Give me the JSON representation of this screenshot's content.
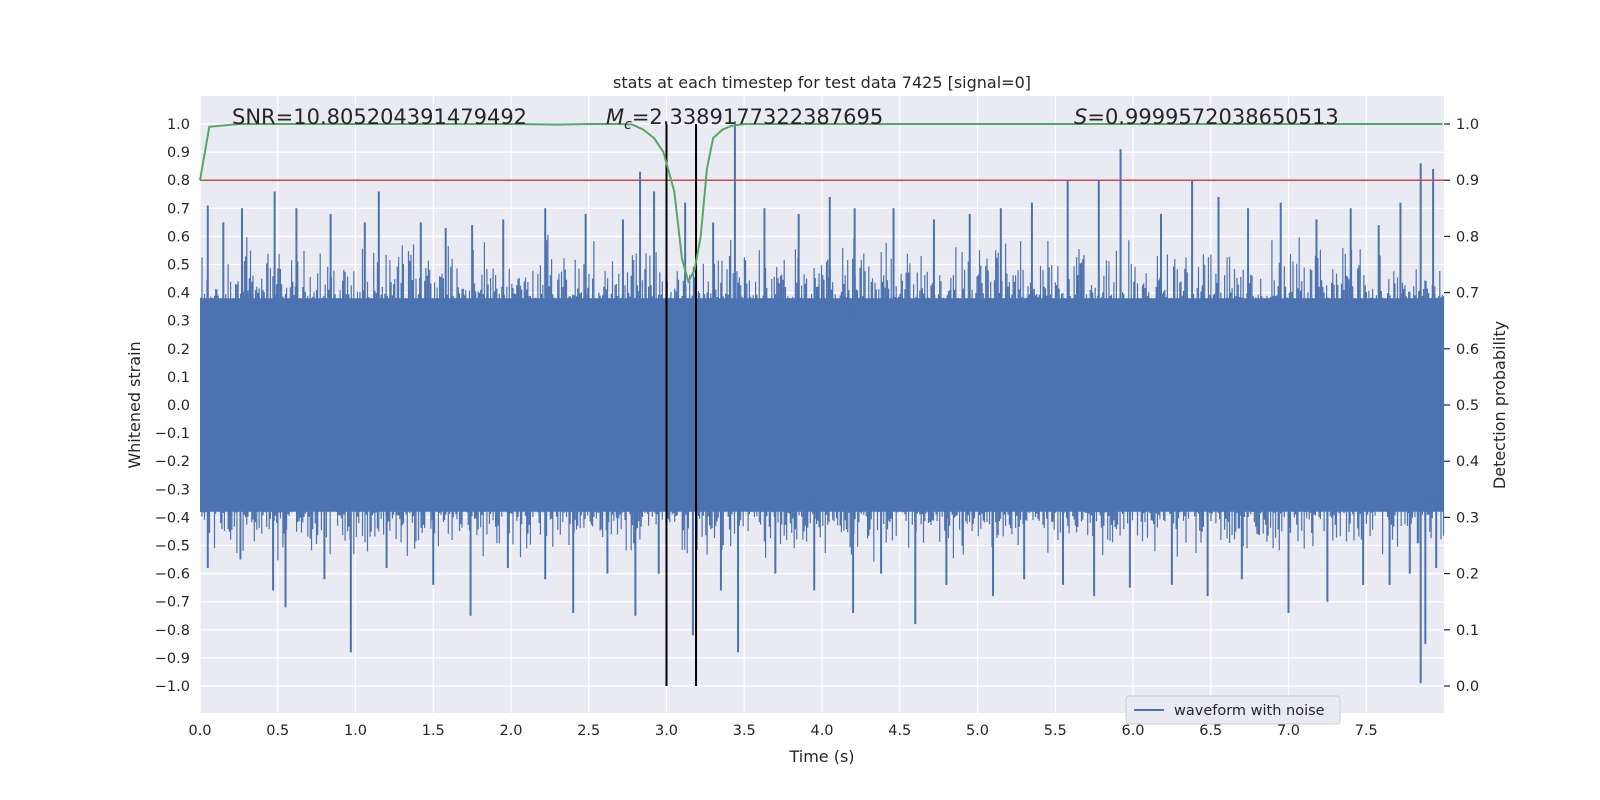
{
  "chart_data": {
    "type": "line",
    "title": "stats at each timestep for test data 7425 [signal=0]",
    "xlabel": "Time (s)",
    "ylabel": "Whitened strain",
    "y2label": "Detection probability",
    "xlim": [
      0.0,
      8.0
    ],
    "ylim": [
      -1.1,
      1.1
    ],
    "y2lim": [
      -0.05,
      1.05
    ],
    "xticks": [
      0.0,
      0.5,
      1.0,
      1.5,
      2.0,
      2.5,
      3.0,
      3.5,
      4.0,
      4.5,
      5.0,
      5.5,
      6.0,
      6.5,
      7.0,
      7.5
    ],
    "xtick_labels": [
      "0.0",
      "0.5",
      "1.0",
      "1.5",
      "2.0",
      "2.5",
      "3.0",
      "3.5",
      "4.0",
      "4.5",
      "5.0",
      "5.5",
      "6.0",
      "6.5",
      "7.0",
      "7.5"
    ],
    "yticks": [
      1.0,
      0.9,
      0.8,
      0.7,
      0.6,
      0.5,
      0.4,
      0.3,
      0.2,
      0.1,
      0.0,
      -0.1,
      -0.2,
      -0.3,
      -0.4,
      -0.5,
      -0.6,
      -0.7,
      -0.8,
      -0.9,
      -1.0
    ],
    "ytick_labels": [
      "1.0",
      "0.9",
      "0.8",
      "0.7",
      "0.6",
      "0.5",
      "0.4",
      "0.3",
      "0.2",
      "0.1",
      "0.0",
      "−0.1",
      "−0.2",
      "−0.3",
      "−0.4",
      "−0.5",
      "−0.6",
      "−0.7",
      "−0.8",
      "−0.9",
      "−1.0"
    ],
    "y2ticks": [
      1.0,
      0.9,
      0.8,
      0.7,
      0.6,
      0.5,
      0.4,
      0.3,
      0.2,
      0.1,
      0.0
    ],
    "y2tick_labels": [
      "1.0",
      "0.9",
      "0.8",
      "0.7",
      "0.6",
      "0.5",
      "0.4",
      "0.3",
      "0.2",
      "0.1",
      "0.0"
    ],
    "annotations": {
      "snr": "SNR=10.805204391479492",
      "mc_symbol": "M",
      "mc_sub": "c",
      "mc_value": "=2.3389177322387695",
      "s_symbol": "S",
      "s_value": "=0.9999572038650513"
    },
    "legend": {
      "label": "waveform with noise",
      "position": "lower-right"
    },
    "waveform": {
      "name": "waveform with noise",
      "color": "#4c72b0",
      "dense_band": [
        -0.38,
        0.38
      ],
      "positive_peaks": [
        {
          "t": 0.05,
          "v": 0.71
        },
        {
          "t": 0.15,
          "v": 0.65
        },
        {
          "t": 0.27,
          "v": 0.7
        },
        {
          "t": 0.48,
          "v": 0.76
        },
        {
          "t": 0.62,
          "v": 0.7
        },
        {
          "t": 0.84,
          "v": 0.68
        },
        {
          "t": 1.06,
          "v": 0.65
        },
        {
          "t": 1.15,
          "v": 0.76
        },
        {
          "t": 1.42,
          "v": 0.65
        },
        {
          "t": 1.58,
          "v": 0.63
        },
        {
          "t": 1.75,
          "v": 0.64
        },
        {
          "t": 1.95,
          "v": 0.66
        },
        {
          "t": 2.22,
          "v": 0.7
        },
        {
          "t": 2.48,
          "v": 0.68
        },
        {
          "t": 2.72,
          "v": 0.66
        },
        {
          "t": 2.83,
          "v": 0.83
        },
        {
          "t": 2.92,
          "v": 0.76
        },
        {
          "t": 3.12,
          "v": 0.72
        },
        {
          "t": 3.3,
          "v": 0.65
        },
        {
          "t": 3.44,
          "v": 1.01
        },
        {
          "t": 3.63,
          "v": 0.7
        },
        {
          "t": 3.85,
          "v": 0.68
        },
        {
          "t": 4.05,
          "v": 0.74
        },
        {
          "t": 4.21,
          "v": 0.7
        },
        {
          "t": 4.46,
          "v": 0.7
        },
        {
          "t": 4.72,
          "v": 0.66
        },
        {
          "t": 4.95,
          "v": 0.68
        },
        {
          "t": 5.15,
          "v": 0.7
        },
        {
          "t": 5.35,
          "v": 0.72
        },
        {
          "t": 5.58,
          "v": 0.8
        },
        {
          "t": 5.78,
          "v": 0.8
        },
        {
          "t": 5.92,
          "v": 0.91
        },
        {
          "t": 6.18,
          "v": 0.68
        },
        {
          "t": 6.38,
          "v": 0.8
        },
        {
          "t": 6.55,
          "v": 0.74
        },
        {
          "t": 6.74,
          "v": 0.7
        },
        {
          "t": 6.95,
          "v": 0.72
        },
        {
          "t": 7.18,
          "v": 0.66
        },
        {
          "t": 7.4,
          "v": 0.7
        },
        {
          "t": 7.58,
          "v": 0.64
        },
        {
          "t": 7.72,
          "v": 0.72
        },
        {
          "t": 7.85,
          "v": 0.86
        },
        {
          "t": 7.93,
          "v": 0.84
        }
      ],
      "negative_peaks": [
        {
          "t": 0.05,
          "v": -0.58
        },
        {
          "t": 0.26,
          "v": -0.55
        },
        {
          "t": 0.47,
          "v": -0.66
        },
        {
          "t": 0.55,
          "v": -0.72
        },
        {
          "t": 0.8,
          "v": -0.62
        },
        {
          "t": 0.97,
          "v": -0.88
        },
        {
          "t": 1.2,
          "v": -0.58
        },
        {
          "t": 1.5,
          "v": -0.64
        },
        {
          "t": 1.74,
          "v": -0.75
        },
        {
          "t": 1.98,
          "v": -0.58
        },
        {
          "t": 2.22,
          "v": -0.62
        },
        {
          "t": 2.4,
          "v": -0.74
        },
        {
          "t": 2.62,
          "v": -0.6
        },
        {
          "t": 2.8,
          "v": -0.75
        },
        {
          "t": 2.95,
          "v": -0.6
        },
        {
          "t": 3.17,
          "v": -0.82
        },
        {
          "t": 3.35,
          "v": -0.66
        },
        {
          "t": 3.46,
          "v": -0.88
        },
        {
          "t": 3.7,
          "v": -0.6
        },
        {
          "t": 3.95,
          "v": -0.66
        },
        {
          "t": 4.2,
          "v": -0.74
        },
        {
          "t": 4.38,
          "v": -0.6
        },
        {
          "t": 4.6,
          "v": -0.78
        },
        {
          "t": 4.8,
          "v": -0.64
        },
        {
          "t": 5.1,
          "v": -0.68
        },
        {
          "t": 5.3,
          "v": -0.62
        },
        {
          "t": 5.55,
          "v": -0.64
        },
        {
          "t": 5.75,
          "v": -0.68
        },
        {
          "t": 5.98,
          "v": -0.65
        },
        {
          "t": 6.25,
          "v": -0.64
        },
        {
          "t": 6.48,
          "v": -0.68
        },
        {
          "t": 6.7,
          "v": -0.62
        },
        {
          "t": 7.0,
          "v": -0.74
        },
        {
          "t": 7.25,
          "v": -0.7
        },
        {
          "t": 7.48,
          "v": -0.64
        },
        {
          "t": 7.65,
          "v": -0.64
        },
        {
          "t": 7.78,
          "v": -0.6
        },
        {
          "t": 7.85,
          "v": -0.99
        },
        {
          "t": 7.88,
          "v": -0.85
        },
        {
          "t": 7.95,
          "v": -0.58
        }
      ]
    },
    "probability": {
      "name": "detection probability",
      "color": "#55a868",
      "x": [
        0.0,
        0.06,
        0.25,
        1.0,
        1.5,
        2.0,
        2.3,
        2.5,
        2.7,
        2.78,
        2.85,
        2.92,
        2.98,
        3.05,
        3.1,
        3.14,
        3.18,
        3.22,
        3.26,
        3.3,
        3.36,
        3.42,
        3.5,
        4.0,
        5.0,
        6.0,
        7.0,
        8.0
      ],
      "y": [
        0.9,
        0.995,
        1.0,
        1.0,
        1.0,
        1.0,
        0.999,
        1.0,
        1.0,
        0.999,
        0.99,
        0.975,
        0.95,
        0.88,
        0.76,
        0.72,
        0.74,
        0.8,
        0.92,
        0.975,
        0.99,
        0.997,
        1.0,
        1.0,
        1.0,
        1.0,
        1.0,
        1.0
      ]
    },
    "threshold": {
      "value": 0.9,
      "color": "#c44e52"
    },
    "vertical_markers": [
      {
        "t": 3.0,
        "v_top": 1.0,
        "v_bottom": -1.0,
        "color": "#000000"
      },
      {
        "t": 3.19,
        "v_top": 1.0,
        "v_bottom": -1.0,
        "color": "#000000"
      }
    ]
  }
}
